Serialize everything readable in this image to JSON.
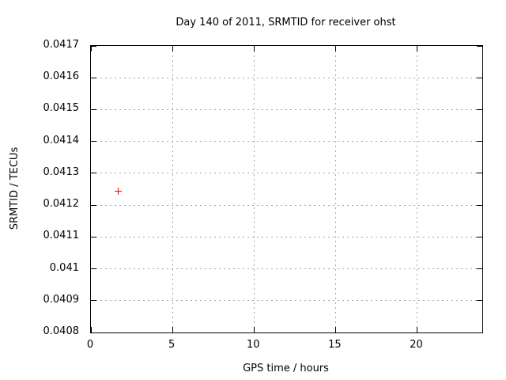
{
  "chart_data": {
    "type": "scatter",
    "title": "Day 140 of 2011, SRMTID for receiver ohst",
    "xlabel": "GPS time / hours",
    "ylabel": "SRMTID / TECUs",
    "xlim": [
      0,
      24
    ],
    "ylim": [
      0.0408,
      0.0417
    ],
    "xticks": [
      {
        "value": 0,
        "label": "0"
      },
      {
        "value": 5,
        "label": "5"
      },
      {
        "value": 10,
        "label": "10"
      },
      {
        "value": 15,
        "label": "15"
      },
      {
        "value": 20,
        "label": "20"
      }
    ],
    "yticks": [
      {
        "value": 0.0417,
        "label": "0.0417"
      },
      {
        "value": 0.0416,
        "label": "0.0416"
      },
      {
        "value": 0.0415,
        "label": "0.0415"
      },
      {
        "value": 0.0414,
        "label": "0.0414"
      },
      {
        "value": 0.0413,
        "label": "0.0413"
      },
      {
        "value": 0.0412,
        "label": "0.0412"
      },
      {
        "value": 0.0411,
        "label": "0.0411"
      },
      {
        "value": 0.041,
        "label": "0.041"
      },
      {
        "value": 0.0409,
        "label": "0.0409"
      },
      {
        "value": 0.0408,
        "label": "0.0408"
      }
    ],
    "grid": true,
    "legend": "none",
    "series": [
      {
        "name": "SRMTID",
        "marker": "plus",
        "color": "#ff0000",
        "points": [
          {
            "x": 1.69,
            "y": 0.041245
          }
        ]
      }
    ],
    "colors": {
      "background": "#ffffff",
      "axis": "#000000",
      "grid": "#a6a6a6",
      "text": "#000000"
    }
  }
}
